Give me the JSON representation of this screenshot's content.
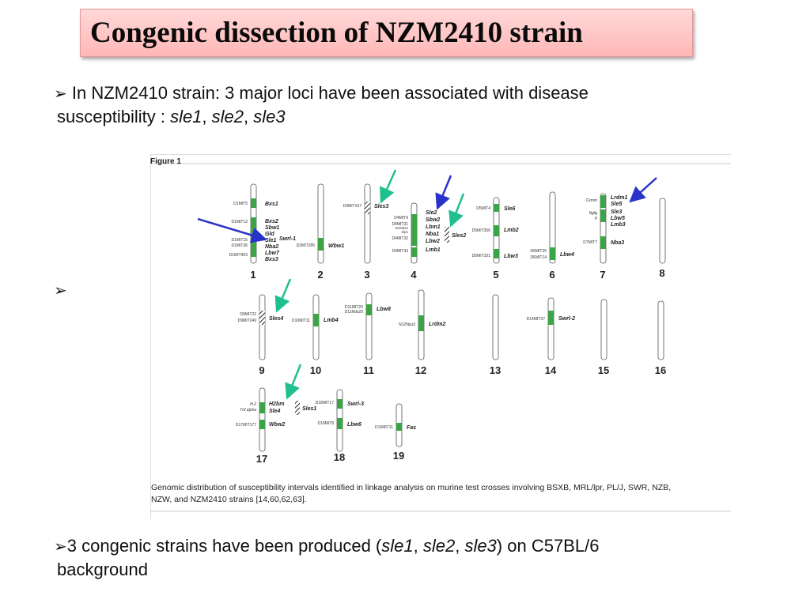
{
  "slide": {
    "title": "Congenic dissection of NZM2410 strain",
    "bullet1": {
      "marker": "➢",
      "text_line1": "In NZM2410 strain: 3 major loci have been associated with disease",
      "text_line2_prefix": "susceptibility : ",
      "loci": [
        "sle1",
        "sle2",
        "sle3"
      ],
      "sep": ", "
    },
    "bullet2": {
      "marker": "➢"
    },
    "bullet3": {
      "marker": "➢",
      "text_part1": "3 congenic strains have been produced (",
      "loci": [
        "sle1",
        "sle2",
        "sle3"
      ],
      "sep": ", ",
      "text_part2": ") on C57BL/6",
      "text_line2": "background"
    }
  },
  "figure": {
    "label": "Figure 1",
    "caption_line1": "Genomic distribution of susceptibility intervals identified in linkage analysis on murine test crosses involving BSXB, MRL/lpr, PL/J, SWR, NZB,",
    "caption_line2": "NZW, and NZM2410 strains [14,60,62,63].",
    "colors": {
      "locus": "#3aa447",
      "chromosome": "#ffffff",
      "teal_arrow": "#1fbf8f",
      "blue_arrow": "#2a33c9"
    },
    "chromosomes": [
      {
        "num": "1",
        "markers": [
          "D1MIT5",
          "D1MIT12",
          "D1MIT15",
          "D1MIT36",
          "D1MIT403"
        ],
        "loci": [
          "Bxs1",
          "Bxs2",
          "Sbw1",
          "Gld",
          "Sle1",
          "Swrl-1",
          "Nba2",
          "Lbw7",
          "Bxs3"
        ]
      },
      {
        "num": "2",
        "markers": [
          "D2MIT285"
        ],
        "loci": [
          "Wbw1"
        ]
      },
      {
        "num": "3",
        "markers": [
          "D3MIT137"
        ],
        "loci": [
          "Sles3"
        ]
      },
      {
        "num": "4",
        "markers": [
          "D4MIT9",
          "D4MIT31",
          "D4Nds2",
          "elp1",
          "D4MIT32",
          "D4MIT33"
        ],
        "loci": [
          "Sle2",
          "Sbw2",
          "Lbm1",
          "Nba1",
          "Lbw2",
          "Sles2",
          "Lmb1"
        ]
      },
      {
        "num": "5",
        "markers": [
          "D5MIT4",
          "D5MIT356",
          "D5MIT101"
        ],
        "loci": [
          "Sle6",
          "Lmb2",
          "Lbw3"
        ]
      },
      {
        "num": "6",
        "markers": [
          "D6MIT25",
          "D6MIT14"
        ],
        "loci": [
          "Lbw4"
        ]
      },
      {
        "num": "7",
        "markers": [
          "Ckmm",
          "Ngfg",
          "p",
          "D7MIT7"
        ],
        "loci": [
          "Lrdm1",
          "Sle5",
          "Sle3",
          "Lbw5",
          "Lmb3",
          "Nba3"
        ]
      },
      {
        "num": "8",
        "markers": [],
        "loci": []
      },
      {
        "num": "9",
        "markers": [
          "D9MIT22",
          "D9MIT249"
        ],
        "loci": [
          "Sles4"
        ]
      },
      {
        "num": "10",
        "markers": [
          "D10MIT11"
        ],
        "loci": [
          "Lmb4"
        ]
      },
      {
        "num": "11",
        "markers": [
          "D11MIT20",
          "D11Nds29"
        ],
        "loci": [
          "Lbw8"
        ]
      },
      {
        "num": "12",
        "markers": [
          "N12Nyu3"
        ],
        "loci": [
          "Lrdm2"
        ]
      },
      {
        "num": "13",
        "markers": [],
        "loci": []
      },
      {
        "num": "14",
        "markers": [
          "D14MIT37"
        ],
        "loci": [
          "Swrl-2"
        ]
      },
      {
        "num": "15",
        "markers": [],
        "loci": []
      },
      {
        "num": "16",
        "markers": [],
        "loci": []
      },
      {
        "num": "17",
        "markers": [
          "H-2",
          "Tnf alpha",
          "D17MIT177"
        ],
        "loci": [
          "H2bm",
          "Sle4",
          "Sles1",
          "Wbw2"
        ]
      },
      {
        "num": "18",
        "markers": [
          "D18MIT17",
          "D18MIT8"
        ],
        "loci": [
          "Swrl-3",
          "Lbw6"
        ]
      },
      {
        "num": "19",
        "markers": [
          "D19MIT11"
        ],
        "loci": [
          "Fas"
        ]
      }
    ]
  }
}
